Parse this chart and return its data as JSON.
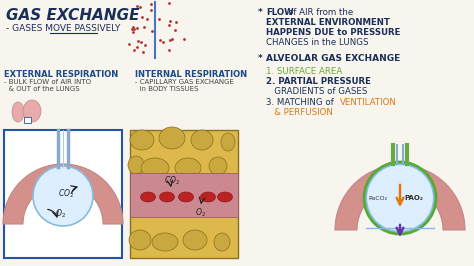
{
  "bg_color": "#f8f4ee",
  "title": "GAS EXCHANGE",
  "subtitle": "- GASES MOVE PASSIVELY",
  "title_color": "#1a2e5a",
  "subtitle_color": "#1a2e5a",
  "section1_title": "EXTERNAL RESPIRATION",
  "section1_sub1": "- BULK FLOW of AIR INTO",
  "section1_sub2": "  & OUT of the LUNGS",
  "section2_title": "INTERNAL RESPIRATION",
  "section2_sub1": "- CAPILLARY GAS EXCHANGE",
  "section2_sub2": "  in BODY TISSUES",
  "section_title_color": "#1a4a8a",
  "section_sub_color": "#444444",
  "rb1_star": "* ",
  "rb1_line1_norm": "FLOW of AIR from the",
  "rb1_line2": "EXTERNAL ENVIRONMENT",
  "rb1_line3": "HAPPENS DUE to PRESSURE",
  "rb1_line4": "CHANGES in the LUNGS",
  "rb2_star": "* ",
  "rb2_head": "ALVEOLAR GAS EXCHANGE",
  "right_item1": "1. SURFACE AREA",
  "right_item2a": "2. PARTIAL PRESSURE",
  "right_item2b": "   GRADIENTS of GASES",
  "right_item3_pre": "3. MATCHING of ",
  "right_item3_vent": "VENTILATION",
  "right_item3_b": "   & PERFUSION",
  "right_text_color": "#1a2e5a",
  "item1_color": "#6aaa30",
  "item3_color": "#e07810",
  "dots_color": "#b03030",
  "separator_color": "#4477cc",
  "lung_fill": "#e8aaaa",
  "lung_edge": "#c08888",
  "flesh_fill": "#d4908a",
  "alv_fill": "#ddeeff",
  "alv_edge": "#88bbdd",
  "tube_blue": "#88aacc",
  "tube_green": "#66aa44",
  "tissue_bg": "#ddb84a",
  "cell_fill": "#c9a840",
  "cell_edge": "#8a7020",
  "cap_fill": "#cc8890",
  "cap_edge": "#995060",
  "rbc_fill": "#bb2222",
  "rbc_edge": "#881111",
  "co2_color": "#222222",
  "o2_color": "#222222",
  "arrow_dark": "#222222",
  "box_outline": "#2255aa",
  "orange_arrow": "#e07810",
  "purple_arrow": "#6633aa",
  "green_ring": "#55aa33",
  "paco2_label": "PaCO₂",
  "pao2_label": "PAO₂"
}
